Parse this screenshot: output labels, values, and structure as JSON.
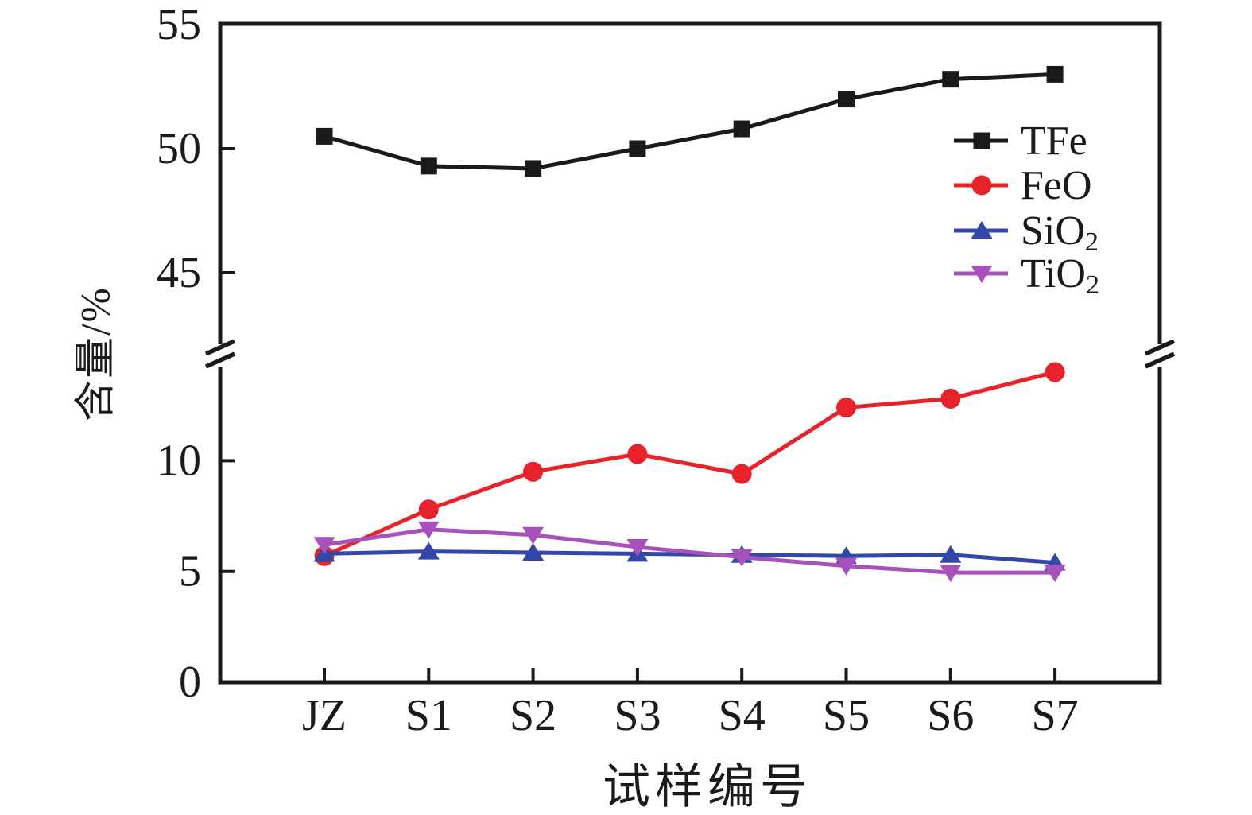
{
  "figure": {
    "background": "#ffffff",
    "axis_color": "#1a1a1a"
  },
  "chart_data": {
    "type": "line",
    "title": "",
    "xlabel": "试样编号",
    "ylabel": "含量/%",
    "grid": false,
    "legend_position": "upper-right",
    "categories": [
      "JZ",
      "S1",
      "S2",
      "S3",
      "S4",
      "S5",
      "S6",
      "S7"
    ],
    "series": [
      {
        "name": "TFe",
        "legend_main": "TFe",
        "legend_sub": "",
        "color": "#1a1a1a",
        "marker": "square",
        "segment": "upper",
        "values": [
          50.5,
          49.3,
          49.2,
          50.0,
          50.8,
          52.0,
          52.8,
          53.0
        ]
      },
      {
        "name": "FeO",
        "legend_main": "FeO",
        "legend_sub": "",
        "color": "#e8222b",
        "marker": "circle",
        "segment": "lower",
        "values": [
          5.7,
          7.8,
          9.5,
          10.3,
          9.4,
          12.4,
          12.8,
          14.0
        ]
      },
      {
        "name": "SiO2",
        "legend_main": "SiO",
        "legend_sub": "2",
        "color": "#3247a8",
        "marker": "triangle-up",
        "segment": "lower",
        "values": [
          5.8,
          5.9,
          5.85,
          5.8,
          5.75,
          5.7,
          5.75,
          5.4
        ]
      },
      {
        "name": "TiO2",
        "legend_main": "TiO",
        "legend_sub": "2",
        "color": "#a851bd",
        "marker": "triangle-down",
        "segment": "lower",
        "values": [
          6.2,
          6.9,
          6.65,
          6.1,
          5.65,
          5.25,
          4.95,
          4.95
        ]
      }
    ],
    "y_axis": {
      "broken": true,
      "lower_segment": {
        "ticks": [
          0,
          5,
          10
        ],
        "range": [
          0,
          14.3
        ]
      },
      "upper_segment": {
        "ticks": [
          45,
          50,
          55
        ],
        "range": [
          42.2,
          55
        ]
      }
    },
    "x_axis": {
      "tick_labels": [
        "JZ",
        "S1",
        "S2",
        "S3",
        "S4",
        "S5",
        "S6",
        "S7"
      ]
    }
  }
}
